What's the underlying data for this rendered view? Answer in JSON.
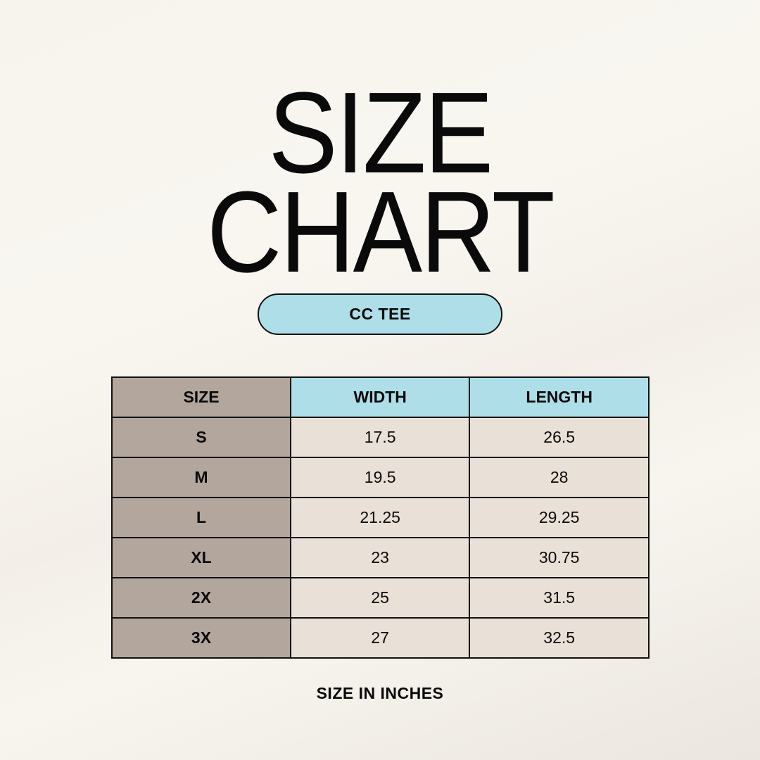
{
  "title_line1": "SIZE",
  "title_line2": "CHART",
  "product": "CC TEE",
  "colors": {
    "header_accent": "#aedfe8",
    "size_column": "#b3a69d",
    "value_cells": "#e9e1d8"
  },
  "table": {
    "headers": [
      "SIZE",
      "WIDTH",
      "LENGTH"
    ],
    "rows": [
      [
        "S",
        "17.5",
        "26.5"
      ],
      [
        "M",
        "19.5",
        "28"
      ],
      [
        "L",
        "21.25",
        "29.25"
      ],
      [
        "XL",
        "23",
        "30.75"
      ],
      [
        "2X",
        "25",
        "31.5"
      ],
      [
        "3X",
        "27",
        "32.5"
      ]
    ]
  },
  "footnote": "SIZE IN INCHES"
}
